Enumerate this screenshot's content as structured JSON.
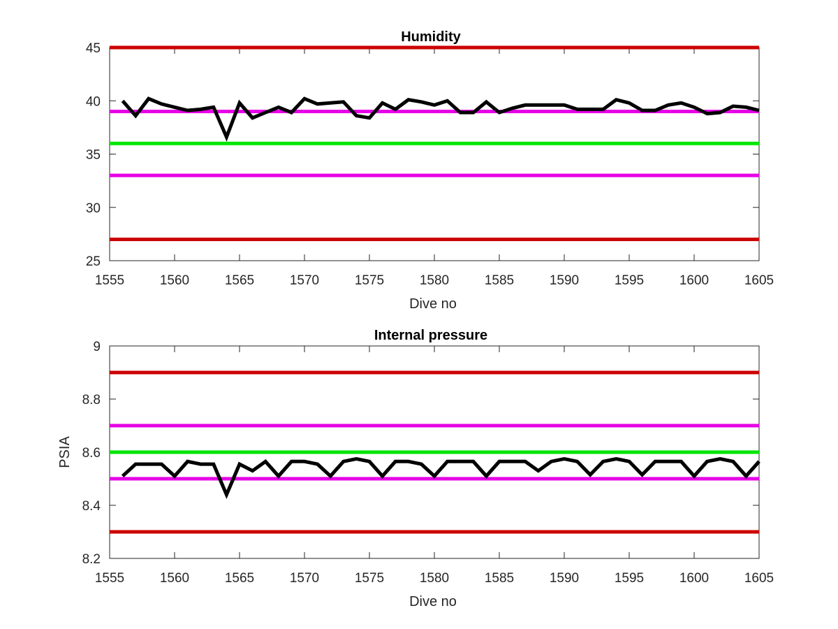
{
  "chart_data": [
    {
      "type": "line",
      "title": "Humidity",
      "xlabel": "Dive no",
      "ylabel": "",
      "xlim": [
        1555,
        1605
      ],
      "ylim": [
        25,
        45
      ],
      "xticks": [
        "1555",
        "1560",
        "1565",
        "1570",
        "1575",
        "1580",
        "1585",
        "1590",
        "1595",
        "1600",
        "1605"
      ],
      "yticks": [
        "25",
        "30",
        "35",
        "40",
        "45"
      ],
      "grid": false,
      "reference_lines": [
        {
          "y": 45,
          "color": "#cc0000"
        },
        {
          "y": 39,
          "color": "#e600e6"
        },
        {
          "y": 36,
          "color": "#00e600"
        },
        {
          "y": 33,
          "color": "#e600e6"
        },
        {
          "y": 27,
          "color": "#cc0000"
        }
      ],
      "series": [
        {
          "color": "#000000",
          "x": [
            1556,
            1557,
            1558,
            1559,
            1560,
            1561,
            1562,
            1563,
            1564,
            1565,
            1566,
            1567,
            1568,
            1569,
            1570,
            1571,
            1572,
            1573,
            1574,
            1575,
            1576,
            1577,
            1578,
            1579,
            1580,
            1581,
            1582,
            1583,
            1584,
            1585,
            1586,
            1587,
            1588,
            1589,
            1590,
            1591,
            1592,
            1593,
            1594,
            1595,
            1596,
            1597,
            1598,
            1599,
            1600,
            1601,
            1602,
            1603,
            1604,
            1605
          ],
          "y": [
            40.0,
            38.6,
            40.2,
            39.7,
            39.4,
            39.1,
            39.2,
            39.4,
            36.6,
            39.8,
            38.4,
            38.9,
            39.4,
            38.9,
            40.2,
            39.7,
            39.8,
            39.9,
            38.6,
            38.4,
            39.8,
            39.2,
            40.1,
            39.9,
            39.6,
            40.0,
            38.9,
            38.9,
            39.9,
            38.9,
            39.3,
            39.6,
            39.6,
            39.6,
            39.6,
            39.2,
            39.2,
            39.2,
            40.1,
            39.8,
            39.1,
            39.1,
            39.6,
            39.8,
            39.4,
            38.8,
            38.9,
            39.5,
            39.4,
            39.1
          ]
        }
      ]
    },
    {
      "type": "line",
      "title": "Internal pressure",
      "xlabel": "Dive no",
      "ylabel": "PSIA",
      "xlim": [
        1555,
        1605
      ],
      "ylim": [
        8.2,
        9.0
      ],
      "xticks": [
        "1555",
        "1560",
        "1565",
        "1570",
        "1575",
        "1580",
        "1585",
        "1590",
        "1595",
        "1600",
        "1605"
      ],
      "yticks": [
        "8.2",
        "8.4",
        "8.6",
        "8.8",
        "9"
      ],
      "grid": false,
      "reference_lines": [
        {
          "y": 8.9,
          "color": "#cc0000"
        },
        {
          "y": 8.7,
          "color": "#e600e6"
        },
        {
          "y": 8.6,
          "color": "#00e600"
        },
        {
          "y": 8.5,
          "color": "#e600e6"
        },
        {
          "y": 8.3,
          "color": "#cc0000"
        }
      ],
      "series": [
        {
          "color": "#000000",
          "x": [
            1556,
            1557,
            1558,
            1559,
            1560,
            1561,
            1562,
            1563,
            1564,
            1565,
            1566,
            1567,
            1568,
            1569,
            1570,
            1571,
            1572,
            1573,
            1574,
            1575,
            1576,
            1577,
            1578,
            1579,
            1580,
            1581,
            1582,
            1583,
            1584,
            1585,
            1586,
            1587,
            1588,
            1589,
            1590,
            1591,
            1592,
            1593,
            1594,
            1595,
            1596,
            1597,
            1598,
            1599,
            1600,
            1601,
            1602,
            1603,
            1604,
            1605
          ],
          "y": [
            8.51,
            8.555,
            8.555,
            8.555,
            8.51,
            8.565,
            8.555,
            8.555,
            8.44,
            8.555,
            8.53,
            8.565,
            8.51,
            8.565,
            8.565,
            8.555,
            8.51,
            8.565,
            8.575,
            8.565,
            8.51,
            8.565,
            8.565,
            8.555,
            8.51,
            8.565,
            8.565,
            8.565,
            8.51,
            8.565,
            8.565,
            8.565,
            8.53,
            8.565,
            8.575,
            8.565,
            8.515,
            8.565,
            8.575,
            8.565,
            8.515,
            8.565,
            8.565,
            8.565,
            8.51,
            8.565,
            8.575,
            8.565,
            8.51,
            8.565
          ]
        }
      ]
    }
  ]
}
